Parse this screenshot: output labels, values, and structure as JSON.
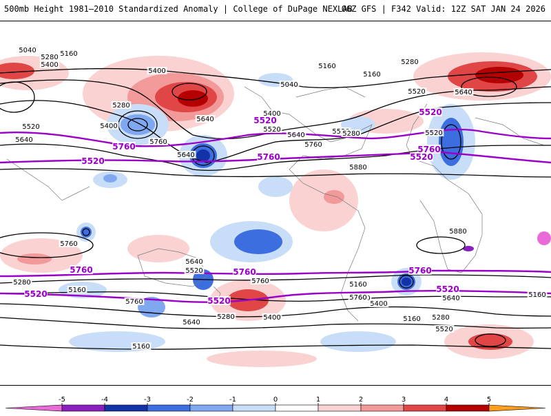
{
  "header": {
    "title": "500mb Height 1981–2010 Standardized Anomaly | College of DuPage NEXLAB",
    "run_info": "06Z GFS | F342 Valid: 12Z SAT JAN 24 2026"
  },
  "contour_labels": {
    "black": [
      "5040",
      "5280",
      "5160",
      "5400",
      "5400",
      "5040",
      "5160",
      "5280",
      "5160",
      "5520",
      "5640",
      "5400",
      "5280",
      "5640",
      "5400",
      "5520",
      "5640",
      "5760",
      "5520",
      "5520",
      "5640",
      "5280",
      "5520",
      "5640",
      "5760",
      "5880",
      "5880",
      "5760",
      "5640",
      "5520",
      "5760",
      "5280",
      "5160",
      "5760",
      "5640",
      "5280",
      "5400",
      "5160",
      "5040",
      "5160",
      "5640",
      "5400",
      "5280",
      "5160",
      "5160",
      "5520",
      "5760"
    ],
    "purple": [
      "5520",
      "5520",
      "5760",
      "5760",
      "5520",
      "5760",
      "5760",
      "5760",
      "5760",
      "5520",
      "5520",
      "5520",
      "5520"
    ]
  },
  "colorbar": {
    "labels": [
      "-5",
      "-4",
      "-3",
      "-2",
      "-1",
      "0",
      "1",
      "2",
      "3",
      "4",
      "5"
    ],
    "colors": [
      "#e86bd8",
      "#8a1fc0",
      "#1432a8",
      "#3c6ee0",
      "#7fa8f0",
      "#c8ddf7",
      "#ffffff",
      "#fad2d2",
      "#f29a9a",
      "#e04646",
      "#b40000",
      "#ff9e1e"
    ]
  }
}
